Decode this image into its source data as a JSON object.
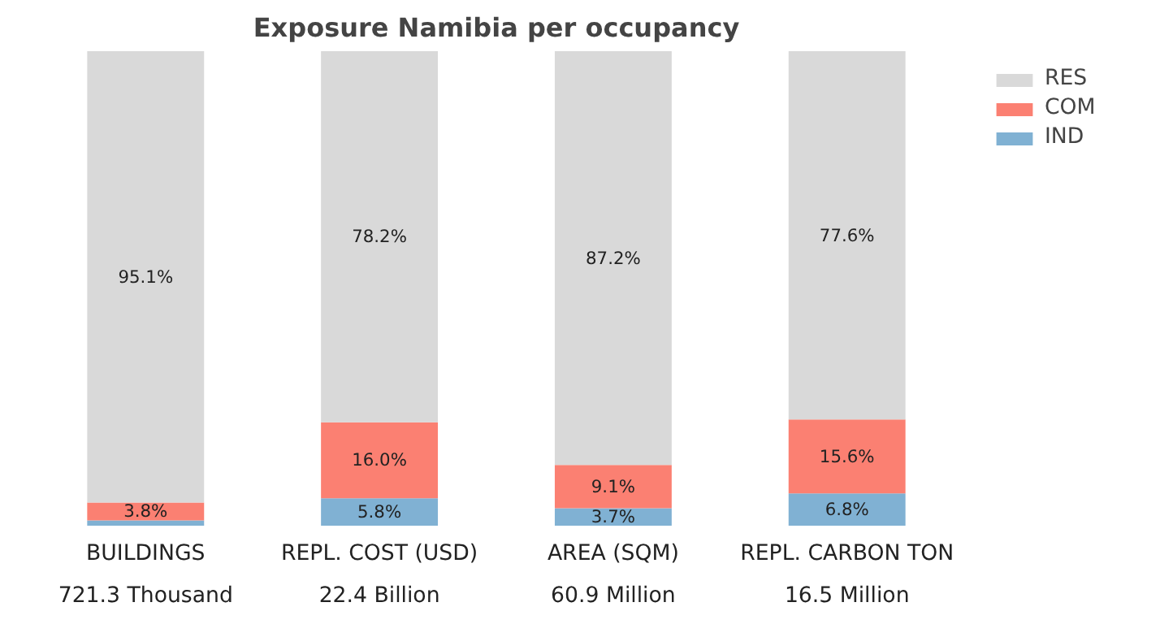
{
  "chart_data": {
    "type": "bar",
    "title": "Exposure Namibia per occupancy",
    "stacked": true,
    "categories": [
      "BUILDINGS\n721.3 Thousand",
      "REPL. COST (USD)\n22.4 Billion",
      "AREA (SQM)\n60.9 Million",
      "REPL. CARBON TON\n16.5 Million"
    ],
    "series": [
      {
        "name": "IND",
        "color": "#80b1d3",
        "values": [
          1.1,
          5.8,
          3.7,
          6.8
        ],
        "value_labels": [
          null,
          "5.8%",
          "3.7%",
          "6.8%"
        ]
      },
      {
        "name": "COM",
        "color": "#fb8072",
        "values": [
          3.8,
          16.0,
          9.1,
          15.6
        ],
        "value_labels": [
          "3.8%",
          "16.0%",
          "9.1%",
          "15.6%"
        ]
      },
      {
        "name": "RES",
        "color": "#d9d9d9",
        "values": [
          95.1,
          78.2,
          87.2,
          77.6
        ],
        "value_labels": [
          "95.1%",
          "78.2%",
          "87.2%",
          "77.6%"
        ]
      }
    ],
    "grid": false,
    "legend": "top right"
  }
}
